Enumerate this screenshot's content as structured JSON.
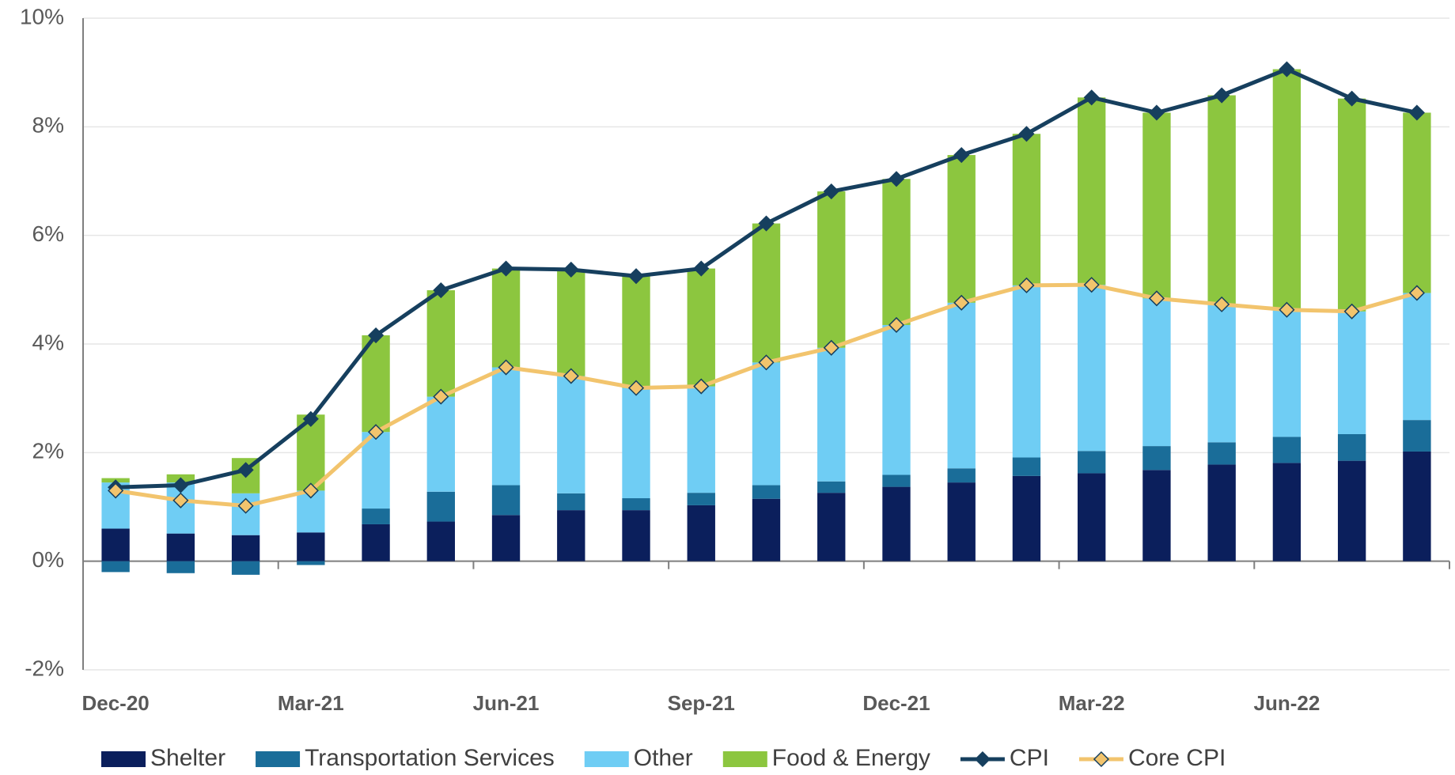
{
  "chart_data": {
    "type": "bar-line",
    "categories": [
      "Dec-20",
      null,
      null,
      "Mar-21",
      null,
      null,
      "Jun-21",
      null,
      null,
      "Sep-21",
      null,
      null,
      "Dec-21",
      null,
      null,
      "Mar-22",
      null,
      null,
      "Jun-22",
      null,
      null
    ],
    "series": [
      {
        "name": "Shelter",
        "type": "bar",
        "color": "#0b1f5c",
        "values": [
          0.6,
          0.51,
          0.48,
          0.53,
          0.68,
          0.73,
          0.85,
          0.94,
          0.94,
          1.03,
          1.15,
          1.26,
          1.37,
          1.45,
          1.57,
          1.62,
          1.68,
          1.78,
          1.81,
          1.85,
          2.02
        ]
      },
      {
        "name": "Transportation Services",
        "type": "bar",
        "color": "#1a6d99",
        "values": [
          -0.2,
          -0.22,
          -0.25,
          -0.07,
          0.29,
          0.55,
          0.55,
          0.31,
          0.22,
          0.23,
          0.25,
          0.21,
          0.22,
          0.26,
          0.34,
          0.41,
          0.44,
          0.41,
          0.48,
          0.49,
          0.58
        ]
      },
      {
        "name": "Other",
        "type": "bar",
        "color": "#6fcdf4",
        "values": [
          0.85,
          0.94,
          0.77,
          0.77,
          1.41,
          1.75,
          2.17,
          2.16,
          2.03,
          1.96,
          2.26,
          2.46,
          2.76,
          3.05,
          3.17,
          3.06,
          2.72,
          2.54,
          2.34,
          2.26,
          2.34
        ]
      },
      {
        "name": "Food & Energy",
        "type": "bar",
        "color": "#8cc63f",
        "values": [
          0.08,
          0.15,
          0.65,
          1.4,
          1.78,
          1.96,
          1.82,
          1.96,
          2.06,
          2.17,
          2.56,
          2.88,
          2.69,
          2.72,
          2.79,
          3.45,
          3.42,
          3.85,
          4.43,
          3.92,
          3.32
        ]
      },
      {
        "name": "CPI",
        "type": "line",
        "color": "#163f5e",
        "marker_fill": "#163f5e",
        "values": [
          1.36,
          1.4,
          1.68,
          2.62,
          4.16,
          4.99,
          5.39,
          5.37,
          5.25,
          5.39,
          6.22,
          6.81,
          7.04,
          7.48,
          7.87,
          8.54,
          8.26,
          8.58,
          9.06,
          8.52,
          8.26
        ]
      },
      {
        "name": "Core CPI",
        "type": "line",
        "color": "#f2c46d",
        "marker_fill": "#f2c46d",
        "values": [
          1.3,
          1.12,
          1.02,
          1.3,
          2.38,
          3.03,
          3.57,
          3.41,
          3.19,
          3.22,
          3.66,
          3.93,
          4.35,
          4.76,
          5.08,
          5.09,
          4.84,
          4.73,
          4.63,
          4.6,
          4.94
        ]
      }
    ],
    "ylim": [
      -2,
      10
    ],
    "yticks": [
      {
        "value": -2,
        "label": "-2%"
      },
      {
        "value": 0,
        "label": "0%"
      },
      {
        "value": 2,
        "label": "2%"
      },
      {
        "value": 4,
        "label": "4%"
      },
      {
        "value": 6,
        "label": "6%"
      },
      {
        "value": 8,
        "label": "8%"
      },
      {
        "value": 10,
        "label": "10%"
      }
    ],
    "grid": true,
    "legend": "bottom"
  }
}
